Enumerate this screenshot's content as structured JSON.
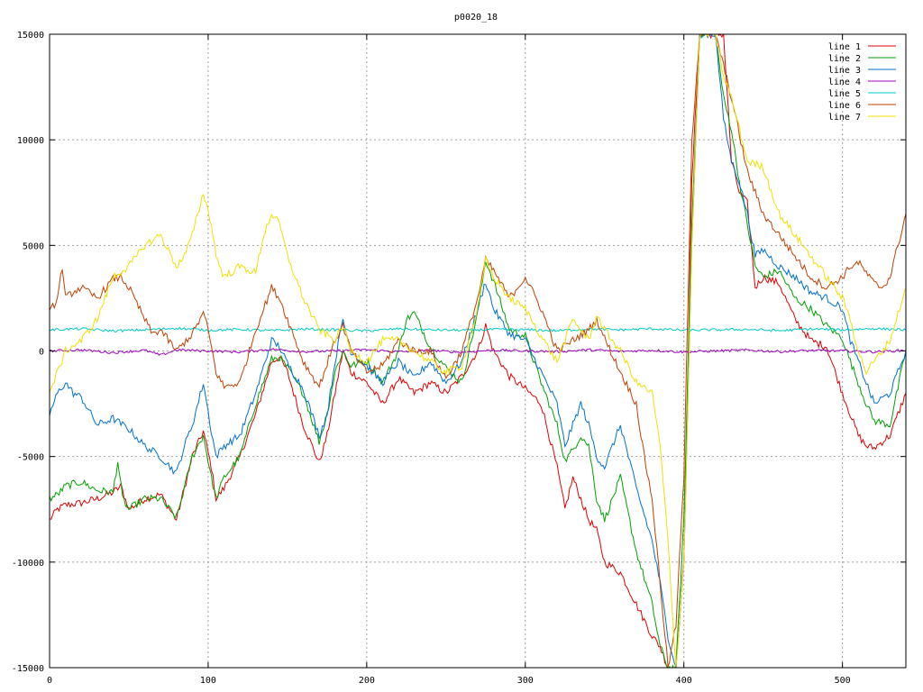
{
  "chart_data": {
    "type": "line",
    "title": "p0020_18",
    "xlabel": "",
    "ylabel": "",
    "xlim": [
      0,
      540
    ],
    "ylim": [
      -15000,
      15000
    ],
    "xticks": [
      0,
      100,
      200,
      300,
      400,
      500
    ],
    "yticks": [
      -15000,
      -10000,
      -5000,
      0,
      5000,
      10000,
      15000
    ],
    "grid": true,
    "legend_position": "top-right",
    "series": [
      {
        "name": "line 1",
        "color": "#e00000",
        "x": [
          0,
          5,
          10,
          20,
          30,
          40,
          45,
          50,
          60,
          70,
          80,
          85,
          90,
          97,
          102,
          105,
          110,
          120,
          130,
          140,
          145,
          150,
          160,
          170,
          175,
          180,
          185,
          190,
          200,
          210,
          220,
          230,
          240,
          250,
          260,
          270,
          275,
          280,
          290,
          300,
          310,
          320,
          325,
          330,
          335,
          340,
          345,
          350,
          360,
          370,
          380,
          385,
          390,
          395,
          400,
          405,
          410,
          415,
          420,
          425,
          430,
          435,
          440,
          445,
          450,
          460,
          470,
          480,
          490,
          500,
          505,
          510,
          515,
          520,
          530,
          540
        ],
        "y": [
          -8000,
          -7500,
          -7300,
          -7200,
          -7000,
          -6700,
          -6400,
          -7500,
          -7000,
          -6800,
          -8000,
          -6500,
          -5000,
          -3800,
          -5500,
          -7000,
          -6500,
          -5000,
          -3000,
          -500,
          -300,
          -1000,
          -3500,
          -5300,
          -4000,
          -2000,
          0,
          -1000,
          -1500,
          -2500,
          -1300,
          -2000,
          -1500,
          -2000,
          -1200,
          0,
          1200,
          0,
          -1200,
          -1800,
          -2500,
          -5500,
          -7500,
          -6000,
          -7000,
          -8000,
          -8500,
          -10000,
          -10500,
          -12000,
          -13500,
          -14000,
          -15000,
          -15000,
          -10000,
          8000,
          15000,
          15000,
          15000,
          15000,
          9000,
          7500,
          7000,
          3000,
          3500,
          3200,
          1500,
          500,
          200,
          -2000,
          -3000,
          -4000,
          -4500,
          -4600,
          -4000,
          -2000
        ]
      },
      {
        "name": "line 2",
        "color": "#00a000",
        "x": [
          0,
          5,
          10,
          20,
          30,
          40,
          43,
          46,
          50,
          60,
          70,
          80,
          85,
          90,
          97,
          102,
          105,
          110,
          120,
          130,
          140,
          145,
          150,
          160,
          170,
          175,
          180,
          185,
          190,
          200,
          210,
          220,
          225,
          230,
          240,
          250,
          260,
          270,
          275,
          280,
          290,
          300,
          310,
          320,
          325,
          330,
          335,
          340,
          345,
          350,
          360,
          370,
          380,
          385,
          390,
          395,
          400,
          405,
          410,
          415,
          420,
          425,
          430,
          435,
          440,
          445,
          450,
          460,
          470,
          480,
          490,
          500,
          505,
          510,
          515,
          520,
          530,
          540
        ],
        "y": [
          -7000,
          -6800,
          -6400,
          -6200,
          -6600,
          -6700,
          -5200,
          -7000,
          -7500,
          -7000,
          -7000,
          -7900,
          -6500,
          -5000,
          -4000,
          -6000,
          -7000,
          -6000,
          -5000,
          -2500,
          -400,
          -300,
          -800,
          -2000,
          -4300,
          -3000,
          -1000,
          0,
          -700,
          -500,
          -1500,
          0,
          1500,
          1800,
          200,
          -800,
          -1500,
          1800,
          4300,
          3300,
          1000,
          700,
          -1500,
          -3500,
          -5200,
          -4700,
          -4000,
          -4500,
          -7000,
          -8000,
          -6000,
          -9500,
          -12000,
          -14000,
          -15000,
          -15000,
          -8000,
          6000,
          15000,
          15000,
          15000,
          12000,
          10500,
          8000,
          6000,
          4000,
          3500,
          3800,
          2500,
          2000,
          1200,
          600,
          -500,
          -1500,
          -2500,
          -3300,
          -3500,
          0
        ]
      },
      {
        "name": "line 3",
        "color": "#0070d0",
        "x": [
          0,
          5,
          10,
          15,
          20,
          30,
          40,
          50,
          60,
          70,
          80,
          85,
          90,
          97,
          102,
          105,
          110,
          120,
          130,
          140,
          145,
          150,
          160,
          170,
          175,
          180,
          185,
          190,
          200,
          210,
          220,
          230,
          240,
          250,
          260,
          270,
          275,
          280,
          290,
          300,
          310,
          320,
          325,
          330,
          335,
          340,
          345,
          350,
          360,
          370,
          380,
          385,
          390,
          395,
          400,
          405,
          410,
          415,
          420,
          425,
          430,
          435,
          440,
          445,
          450,
          460,
          470,
          480,
          490,
          500,
          505,
          510,
          515,
          520,
          530,
          540
        ],
        "y": [
          -3000,
          -2000,
          -1500,
          -2000,
          -2200,
          -3500,
          -3200,
          -3700,
          -4500,
          -5000,
          -5800,
          -4500,
          -3500,
          -1500,
          -3800,
          -5000,
          -4500,
          -4000,
          -2000,
          500,
          200,
          -600,
          -1800,
          -4000,
          -3000,
          -500,
          1500,
          0,
          -700,
          -1500,
          -500,
          -1300,
          -500,
          -1500,
          -500,
          2000,
          3300,
          2000,
          800,
          500,
          -1000,
          -2500,
          -4500,
          -3500,
          -2500,
          -3500,
          -5000,
          -5500,
          -3500,
          -6500,
          -9000,
          -11000,
          -13500,
          -15000,
          -10000,
          5000,
          15000,
          15000,
          15000,
          11000,
          9000,
          8000,
          6500,
          4500,
          4800,
          4000,
          3500,
          2800,
          2500,
          2000,
          500,
          -500,
          -1500,
          -2500,
          -2000,
          0
        ]
      },
      {
        "name": "line 4",
        "color": "#a000c0",
        "x": [
          0,
          20,
          40,
          60,
          70,
          80,
          100,
          120,
          140,
          160,
          180,
          200,
          220,
          240,
          260,
          280,
          300,
          320,
          340,
          360,
          380,
          400,
          420,
          440,
          460,
          480,
          500,
          520,
          540
        ],
        "y": [
          0,
          50,
          -80,
          30,
          -200,
          50,
          0,
          -50,
          80,
          -30,
          0,
          60,
          -40,
          20,
          -60,
          40,
          0,
          -30,
          50,
          -20,
          30,
          -50,
          0,
          40,
          -30,
          20,
          0,
          -40,
          30
        ]
      },
      {
        "name": "line 5",
        "color": "#00c8c8",
        "x": [
          0,
          20,
          40,
          60,
          80,
          100,
          120,
          140,
          160,
          180,
          200,
          220,
          240,
          260,
          280,
          300,
          320,
          340,
          360,
          380,
          400,
          420,
          440,
          460,
          480,
          500,
          520,
          540
        ],
        "y": [
          1000,
          1050,
          950,
          1000,
          1080,
          980,
          1020,
          960,
          1040,
          1000,
          950,
          1050,
          1000,
          980,
          1020,
          1000,
          960,
          1040,
          1000,
          1050,
          980,
          1000,
          1020,
          960,
          1040,
          1000,
          1060,
          1000
        ]
      },
      {
        "name": "line 6",
        "color": "#c04000",
        "x": [
          0,
          5,
          8,
          10,
          15,
          20,
          30,
          40,
          45,
          50,
          60,
          65,
          70,
          80,
          90,
          97,
          100,
          105,
          110,
          120,
          130,
          140,
          145,
          150,
          160,
          170,
          180,
          185,
          190,
          200,
          210,
          220,
          230,
          240,
          250,
          260,
          270,
          275,
          280,
          290,
          300,
          310,
          320,
          330,
          340,
          345,
          350,
          360,
          370,
          375,
          380,
          385,
          390,
          395,
          400,
          405,
          410,
          415,
          420,
          430,
          440,
          450,
          460,
          470,
          480,
          490,
          500,
          505,
          510,
          520,
          525,
          530,
          540
        ],
        "y": [
          1800,
          2500,
          4000,
          2500,
          2800,
          3000,
          2500,
          3400,
          3500,
          3000,
          1500,
          800,
          1000,
          0,
          800,
          1800,
          1000,
          -1000,
          -1700,
          -1500,
          1000,
          3000,
          2500,
          1500,
          -500,
          -1700,
          500,
          1200,
          0,
          -1000,
          -700,
          500,
          0,
          0,
          -1300,
          0,
          2500,
          4300,
          3800,
          2500,
          3500,
          2000,
          0,
          500,
          1000,
          1500,
          600,
          -1000,
          -2500,
          -5000,
          -7000,
          -11000,
          -15000,
          -13000,
          -6000,
          10000,
          15000,
          15000,
          15000,
          12000,
          8500,
          6500,
          5500,
          4500,
          3500,
          3000,
          3500,
          4000,
          4200,
          3200,
          3000,
          3500,
          6500
        ]
      },
      {
        "name": "line 7",
        "color": "#f0e000",
        "x": [
          0,
          5,
          10,
          20,
          30,
          40,
          50,
          60,
          70,
          80,
          85,
          90,
          97,
          102,
          105,
          110,
          120,
          130,
          135,
          140,
          145,
          150,
          160,
          170,
          180,
          185,
          190,
          200,
          210,
          220,
          230,
          240,
          250,
          260,
          270,
          275,
          280,
          290,
          300,
          310,
          320,
          330,
          340,
          345,
          350,
          360,
          370,
          380,
          385,
          390,
          395,
          400,
          405,
          410,
          415,
          420,
          425,
          430,
          440,
          450,
          460,
          470,
          480,
          490,
          500,
          505,
          510,
          515,
          520,
          530,
          540
        ],
        "y": [
          -2000,
          -1000,
          0,
          500,
          1500,
          3500,
          4000,
          5000,
          5500,
          4000,
          4500,
          5500,
          7500,
          6000,
          4500,
          3500,
          4000,
          3700,
          5500,
          6500,
          6000,
          4500,
          2500,
          1000,
          500,
          1200,
          0,
          -500,
          500,
          500,
          0,
          -500,
          -1000,
          -700,
          2000,
          4300,
          3500,
          2500,
          2000,
          700,
          -500,
          1500,
          500,
          1700,
          1000,
          0,
          -1500,
          -2000,
          -4500,
          -9000,
          -15000,
          -10000,
          5000,
          15000,
          15000,
          15000,
          13000,
          12000,
          9000,
          8700,
          6500,
          5500,
          4500,
          3500,
          2500,
          1500,
          0,
          -1000,
          -500,
          500,
          3000
        ]
      }
    ]
  }
}
